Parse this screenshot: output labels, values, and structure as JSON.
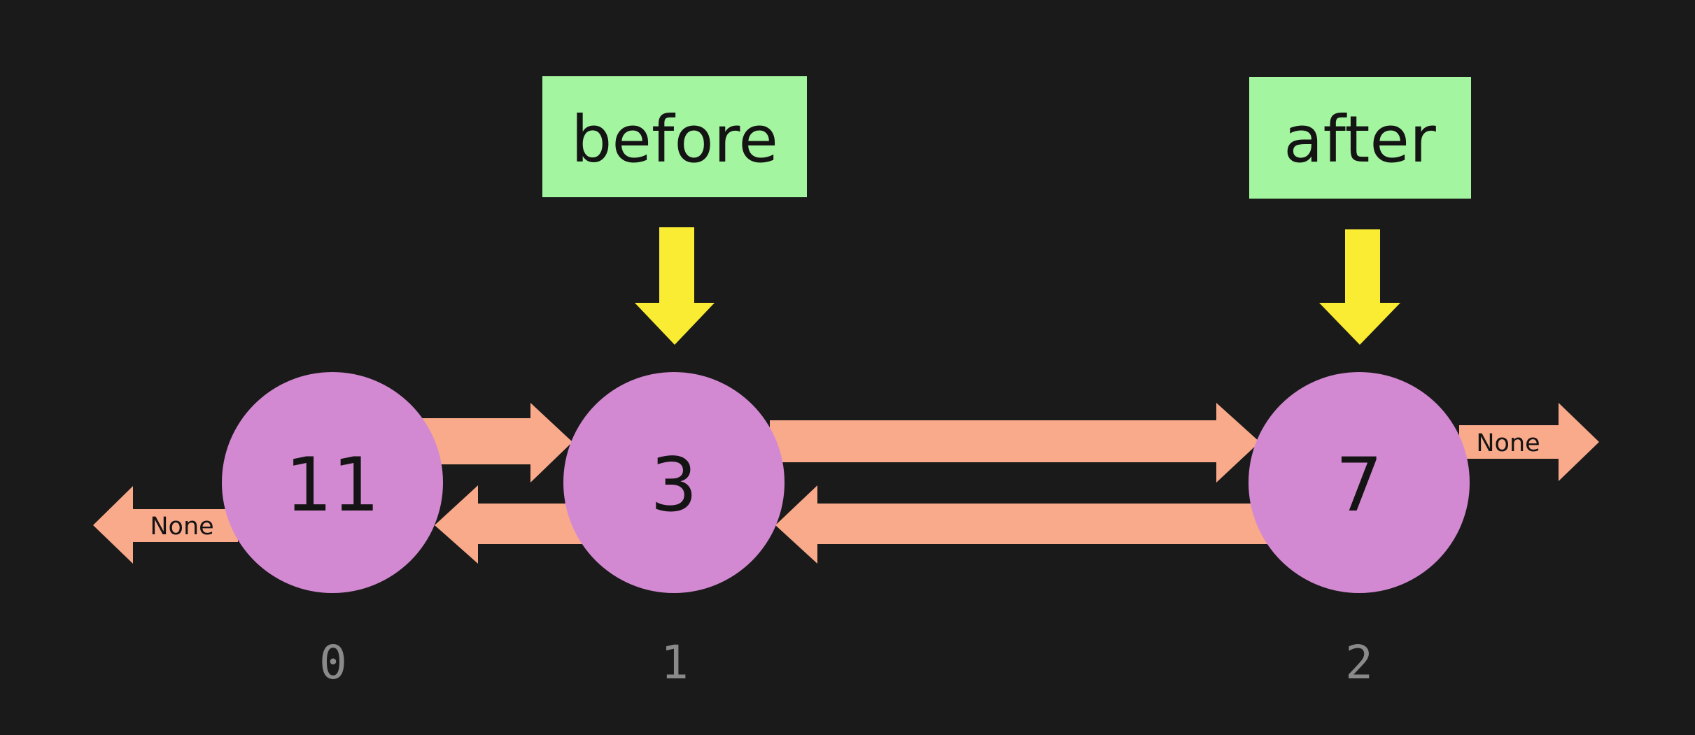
{
  "colors": {
    "background": "#1a1a1a",
    "node_fill": "#d389d1",
    "link_arrow": "#f9aa8a",
    "pointer_label_fill": "#a3f59f",
    "pointer_arrow": "#f9ec32",
    "index_text": "#8a8a8a"
  },
  "nodes": [
    {
      "value": "11",
      "index": "0"
    },
    {
      "value": "3",
      "index": "1"
    },
    {
      "value": "7",
      "index": "2"
    }
  ],
  "pointers": [
    {
      "label": "before",
      "target_index": "1"
    },
    {
      "label": "after",
      "target_index": "2"
    }
  ],
  "head_prev": {
    "label": "None"
  },
  "tail_next": {
    "label": "None"
  },
  "icons": {
    "pointer": "down-arrow-icon",
    "link": "horizontal-arrow-icon"
  }
}
